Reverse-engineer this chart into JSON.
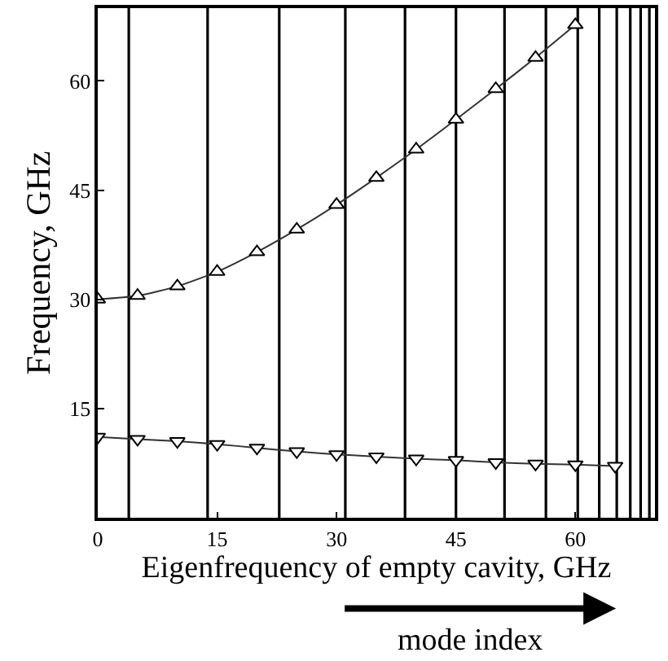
{
  "chart_data": {
    "type": "line",
    "xlabel": "Eigenfrequency of empty cavity, GHz",
    "ylabel": "Frequency, GHz",
    "annotations": [
      "mode index"
    ],
    "xlim": [
      0,
      70
    ],
    "ylim": [
      0,
      70
    ],
    "xticks": [
      0,
      15,
      30,
      45,
      60
    ],
    "yticks": [
      15,
      30,
      45,
      60
    ],
    "line_style": "solid",
    "series": [
      {
        "color": "#333333",
        "marker": "triangle",
        "x": [
          0,
          5,
          10,
          15,
          20,
          25,
          30,
          35,
          40,
          45,
          50,
          55,
          60
        ],
        "values": [
          30.0,
          30.5,
          31.8,
          33.8,
          36.5,
          39.6,
          43.0,
          46.7,
          50.6,
          54.7,
          58.9,
          63.2,
          67.7
        ]
      },
      {
        "color": "#333333",
        "marker": "triangle-down",
        "x": [
          0,
          5,
          10,
          15,
          20,
          25,
          30,
          35,
          40,
          45,
          50,
          55,
          60,
          65
        ],
        "values": [
          11.1,
          10.8,
          10.5,
          10.1,
          9.6,
          9.1,
          8.7,
          8.4,
          8.1,
          7.9,
          7.6,
          7.4,
          7.3,
          7.1
        ]
      }
    ],
    "ref_lines": [
      {
        "axis": "x",
        "value": 3.9,
        "color": "#000000"
      },
      {
        "axis": "x",
        "value": 13.8,
        "color": "#000000"
      },
      {
        "axis": "x",
        "value": 22.8,
        "color": "#000000"
      },
      {
        "axis": "x",
        "value": 31.1,
        "color": "#000000"
      },
      {
        "axis": "x",
        "value": 38.6,
        "color": "#000000"
      },
      {
        "axis": "x",
        "value": 45.0,
        "color": "#000000"
      },
      {
        "axis": "x",
        "value": 51.1,
        "color": "#000000"
      },
      {
        "axis": "x",
        "value": 56.3,
        "color": "#000000"
      },
      {
        "axis": "x",
        "value": 60.3,
        "color": "#000000"
      },
      {
        "axis": "x",
        "value": 63.0,
        "color": "#000000"
      },
      {
        "axis": "x",
        "value": 65.2,
        "color": "#000000"
      },
      {
        "axis": "x",
        "value": 66.9,
        "color": "#000000"
      },
      {
        "axis": "x",
        "value": 68.2,
        "color": "#000000"
      },
      {
        "axis": "x",
        "value": 69.3,
        "color": "#000000"
      }
    ]
  }
}
